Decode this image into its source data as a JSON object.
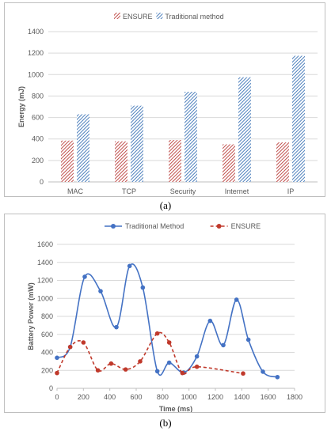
{
  "chart_data": [
    {
      "type": "bar",
      "caption": "(a)",
      "categories": [
        "MAC",
        "TCP",
        "Security",
        "Internet",
        "IP"
      ],
      "series": [
        {
          "name": "ENSURE",
          "values": [
            385,
            378,
            390,
            350,
            368
          ],
          "color": "#c0504d",
          "pattern": "diagonal-hatch"
        },
        {
          "name": "Traditional method",
          "values": [
            630,
            710,
            840,
            975,
            1175
          ],
          "color": "#4f81bd",
          "pattern": "diagonal-hatch"
        }
      ],
      "ylabel": "Energy (mJ)",
      "ylim": [
        0,
        1400
      ],
      "yticks": [
        "0",
        "200",
        "400",
        "600",
        "800",
        "1000",
        "1200",
        "1400"
      ],
      "grid": true,
      "legend": "top-center"
    },
    {
      "type": "line",
      "caption": "(b)",
      "series": [
        {
          "name": "Traditional Method",
          "color": "#4472c4",
          "style": "solid-smooth",
          "x": [
            0,
            100,
            210,
            330,
            450,
            550,
            650,
            760,
            850,
            960,
            1060,
            1160,
            1260,
            1360,
            1450,
            1560,
            1670
          ],
          "y": [
            340,
            460,
            1240,
            1080,
            680,
            1360,
            1120,
            190,
            285,
            175,
            355,
            750,
            480,
            985,
            540,
            185,
            125
          ]
        },
        {
          "name": "ENSURE",
          "color": "#c0392b",
          "style": "dashed-smooth",
          "x": [
            0,
            100,
            200,
            310,
            410,
            520,
            630,
            760,
            850,
            950,
            1060,
            1410
          ],
          "y": [
            170,
            460,
            510,
            200,
            275,
            210,
            300,
            610,
            510,
            170,
            240,
            165
          ]
        }
      ],
      "xlabel": "Time (ms)",
      "ylabel": "Battery Power (mW)",
      "xlim": [
        0,
        1800
      ],
      "ylim": [
        0,
        1600
      ],
      "xticks": [
        "0",
        "200",
        "400",
        "600",
        "800",
        "1000",
        "1200",
        "1400",
        "1600",
        "1800"
      ],
      "yticks": [
        "0",
        "200",
        "400",
        "600",
        "800",
        "1000",
        "1200",
        "1400",
        "1600"
      ],
      "grid": true,
      "legend": "top-center"
    }
  ]
}
